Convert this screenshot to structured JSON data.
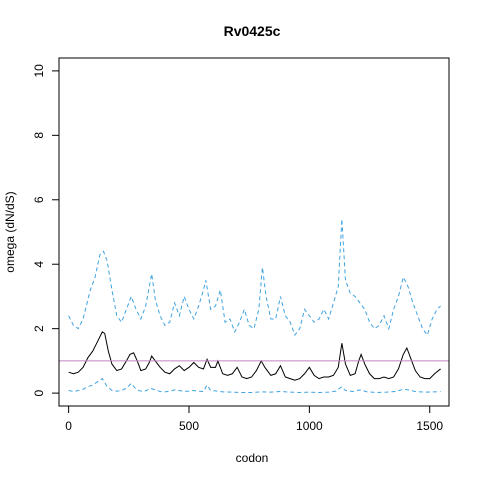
{
  "chart_data": {
    "type": "line",
    "title": "Rv0425c",
    "xlabel": "codon",
    "ylabel": "omega (dN/dS)",
    "xlim": [
      -40,
      1580
    ],
    "ylim": [
      -0.4,
      10.4
    ],
    "xticks": [
      0,
      500,
      1000,
      1500
    ],
    "yticks": [
      0,
      2,
      4,
      6,
      8,
      10
    ],
    "grid": false,
    "reference_line": {
      "y": 1,
      "color": "#c080c0"
    },
    "series": [
      {
        "style": "dashed",
        "color": "#3fa3e0",
        "points": [
          [
            0,
            2.4
          ],
          [
            20,
            2.1
          ],
          [
            40,
            2.0
          ],
          [
            60,
            2.3
          ],
          [
            70,
            2.6
          ],
          [
            90,
            3.2
          ],
          [
            110,
            3.6
          ],
          [
            130,
            4.3
          ],
          [
            145,
            4.4
          ],
          [
            160,
            4.1
          ],
          [
            180,
            3.2
          ],
          [
            200,
            2.4
          ],
          [
            220,
            2.2
          ],
          [
            240,
            2.6
          ],
          [
            260,
            3.0
          ],
          [
            280,
            2.6
          ],
          [
            300,
            2.3
          ],
          [
            320,
            2.7
          ],
          [
            335,
            3.3
          ],
          [
            345,
            3.7
          ],
          [
            360,
            2.9
          ],
          [
            380,
            2.4
          ],
          [
            400,
            2.1
          ],
          [
            420,
            2.2
          ],
          [
            440,
            2.8
          ],
          [
            460,
            2.4
          ],
          [
            480,
            3.0
          ],
          [
            500,
            2.6
          ],
          [
            520,
            2.3
          ],
          [
            540,
            2.7
          ],
          [
            560,
            3.2
          ],
          [
            570,
            3.5
          ],
          [
            590,
            2.6
          ],
          [
            610,
            2.7
          ],
          [
            630,
            3.2
          ],
          [
            650,
            2.2
          ],
          [
            670,
            2.3
          ],
          [
            690,
            1.9
          ],
          [
            710,
            2.2
          ],
          [
            730,
            2.6
          ],
          [
            750,
            2.1
          ],
          [
            770,
            2.0
          ],
          [
            790,
            2.6
          ],
          [
            805,
            3.9
          ],
          [
            820,
            3.0
          ],
          [
            840,
            2.3
          ],
          [
            860,
            2.3
          ],
          [
            880,
            3.0
          ],
          [
            900,
            2.4
          ],
          [
            920,
            2.2
          ],
          [
            940,
            1.8
          ],
          [
            960,
            2.0
          ],
          [
            980,
            2.6
          ],
          [
            1000,
            2.4
          ],
          [
            1020,
            2.2
          ],
          [
            1040,
            2.3
          ],
          [
            1060,
            2.6
          ],
          [
            1080,
            2.3
          ],
          [
            1100,
            2.8
          ],
          [
            1120,
            3.3
          ],
          [
            1135,
            5.4
          ],
          [
            1150,
            3.5
          ],
          [
            1170,
            3.1
          ],
          [
            1190,
            3.0
          ],
          [
            1210,
            2.8
          ],
          [
            1230,
            2.6
          ],
          [
            1250,
            2.2
          ],
          [
            1270,
            2.0
          ],
          [
            1290,
            2.1
          ],
          [
            1310,
            2.4
          ],
          [
            1330,
            2.0
          ],
          [
            1350,
            2.6
          ],
          [
            1370,
            3.0
          ],
          [
            1390,
            3.6
          ],
          [
            1410,
            3.3
          ],
          [
            1430,
            2.8
          ],
          [
            1450,
            2.4
          ],
          [
            1470,
            2.0
          ],
          [
            1490,
            1.8
          ],
          [
            1510,
            2.3
          ],
          [
            1530,
            2.6
          ],
          [
            1545,
            2.7
          ]
        ]
      },
      {
        "style": "solid",
        "color": "#000000",
        "points": [
          [
            0,
            0.65
          ],
          [
            20,
            0.6
          ],
          [
            40,
            0.65
          ],
          [
            60,
            0.8
          ],
          [
            80,
            1.1
          ],
          [
            100,
            1.3
          ],
          [
            120,
            1.6
          ],
          [
            140,
            1.9
          ],
          [
            150,
            1.85
          ],
          [
            165,
            1.3
          ],
          [
            180,
            0.9
          ],
          [
            200,
            0.7
          ],
          [
            220,
            0.75
          ],
          [
            240,
            1.0
          ],
          [
            255,
            1.2
          ],
          [
            270,
            1.25
          ],
          [
            285,
            1.0
          ],
          [
            300,
            0.7
          ],
          [
            320,
            0.75
          ],
          [
            335,
            0.95
          ],
          [
            345,
            1.15
          ],
          [
            360,
            1.0
          ],
          [
            380,
            0.8
          ],
          [
            400,
            0.65
          ],
          [
            420,
            0.6
          ],
          [
            440,
            0.75
          ],
          [
            460,
            0.85
          ],
          [
            480,
            0.7
          ],
          [
            500,
            0.8
          ],
          [
            520,
            0.95
          ],
          [
            540,
            0.8
          ],
          [
            560,
            0.75
          ],
          [
            575,
            1.05
          ],
          [
            590,
            0.8
          ],
          [
            610,
            0.8
          ],
          [
            620,
            1.0
          ],
          [
            640,
            0.6
          ],
          [
            660,
            0.55
          ],
          [
            680,
            0.6
          ],
          [
            700,
            0.8
          ],
          [
            720,
            0.5
          ],
          [
            740,
            0.45
          ],
          [
            760,
            0.5
          ],
          [
            780,
            0.7
          ],
          [
            800,
            1.0
          ],
          [
            815,
            0.8
          ],
          [
            840,
            0.55
          ],
          [
            860,
            0.6
          ],
          [
            880,
            0.85
          ],
          [
            900,
            0.5
          ],
          [
            920,
            0.45
          ],
          [
            940,
            0.4
          ],
          [
            960,
            0.45
          ],
          [
            980,
            0.6
          ],
          [
            1000,
            0.8
          ],
          [
            1020,
            0.55
          ],
          [
            1040,
            0.45
          ],
          [
            1060,
            0.5
          ],
          [
            1080,
            0.5
          ],
          [
            1100,
            0.55
          ],
          [
            1120,
            0.8
          ],
          [
            1135,
            1.55
          ],
          [
            1150,
            0.9
          ],
          [
            1170,
            0.55
          ],
          [
            1190,
            0.6
          ],
          [
            1205,
            1.0
          ],
          [
            1215,
            1.2
          ],
          [
            1230,
            0.9
          ],
          [
            1250,
            0.6
          ],
          [
            1270,
            0.45
          ],
          [
            1290,
            0.45
          ],
          [
            1310,
            0.5
          ],
          [
            1330,
            0.45
          ],
          [
            1350,
            0.5
          ],
          [
            1370,
            0.75
          ],
          [
            1390,
            1.2
          ],
          [
            1405,
            1.4
          ],
          [
            1420,
            1.1
          ],
          [
            1440,
            0.7
          ],
          [
            1460,
            0.5
          ],
          [
            1480,
            0.45
          ],
          [
            1500,
            0.45
          ],
          [
            1520,
            0.6
          ],
          [
            1545,
            0.75
          ]
        ]
      },
      {
        "style": "dashed",
        "color": "#3fa3e0",
        "points": [
          [
            0,
            0.08
          ],
          [
            20,
            0.05
          ],
          [
            40,
            0.08
          ],
          [
            60,
            0.12
          ],
          [
            80,
            0.2
          ],
          [
            100,
            0.25
          ],
          [
            120,
            0.35
          ],
          [
            140,
            0.45
          ],
          [
            160,
            0.2
          ],
          [
            180,
            0.08
          ],
          [
            200,
            0.06
          ],
          [
            220,
            0.08
          ],
          [
            240,
            0.15
          ],
          [
            260,
            0.3
          ],
          [
            280,
            0.12
          ],
          [
            300,
            0.06
          ],
          [
            320,
            0.07
          ],
          [
            340,
            0.15
          ],
          [
            360,
            0.1
          ],
          [
            380,
            0.05
          ],
          [
            400,
            0.04
          ],
          [
            420,
            0.06
          ],
          [
            440,
            0.1
          ],
          [
            460,
            0.08
          ],
          [
            480,
            0.05
          ],
          [
            500,
            0.06
          ],
          [
            520,
            0.08
          ],
          [
            540,
            0.06
          ],
          [
            560,
            0.05
          ],
          [
            575,
            0.25
          ],
          [
            590,
            0.08
          ],
          [
            620,
            0.06
          ],
          [
            640,
            0.04
          ],
          [
            680,
            0.03
          ],
          [
            720,
            0.02
          ],
          [
            760,
            0.02
          ],
          [
            800,
            0.04
          ],
          [
            840,
            0.03
          ],
          [
            880,
            0.05
          ],
          [
            920,
            0.03
          ],
          [
            960,
            0.02
          ],
          [
            1000,
            0.03
          ],
          [
            1040,
            0.02
          ],
          [
            1080,
            0.03
          ],
          [
            1110,
            0.06
          ],
          [
            1135,
            0.2
          ],
          [
            1150,
            0.08
          ],
          [
            1180,
            0.05
          ],
          [
            1210,
            0.1
          ],
          [
            1240,
            0.04
          ],
          [
            1280,
            0.02
          ],
          [
            1320,
            0.03
          ],
          [
            1360,
            0.05
          ],
          [
            1390,
            0.12
          ],
          [
            1410,
            0.1
          ],
          [
            1440,
            0.05
          ],
          [
            1480,
            0.03
          ],
          [
            1520,
            0.04
          ],
          [
            1545,
            0.05
          ]
        ]
      }
    ]
  }
}
